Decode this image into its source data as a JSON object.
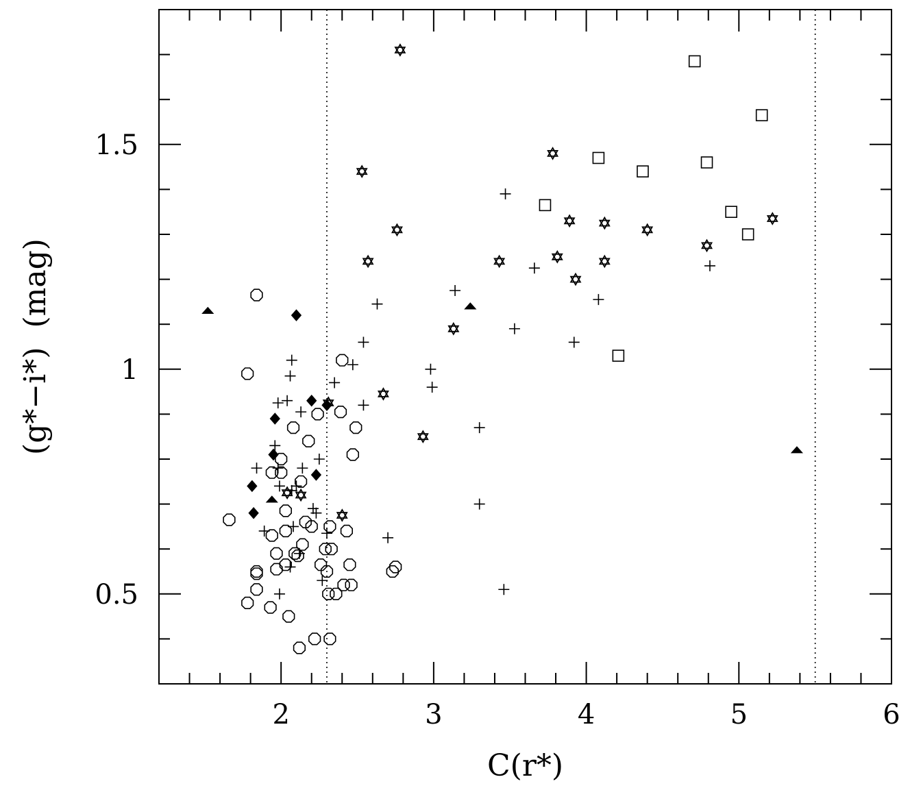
{
  "chart_data": {
    "type": "scatter",
    "title": "",
    "xlabel": "C(r*)",
    "ylabel": "(g*−i*)  (mag)",
    "xlim": [
      1.2,
      6.0
    ],
    "ylim": [
      0.3,
      1.8
    ],
    "xticks": [
      {
        "value": 2,
        "label": "2"
      },
      {
        "value": 3,
        "label": "3"
      },
      {
        "value": 4,
        "label": "4"
      },
      {
        "value": 5,
        "label": "5"
      },
      {
        "value": 6,
        "label": "6"
      }
    ],
    "yticks": [
      {
        "value": 0.5,
        "label": "0.5"
      },
      {
        "value": 1.0,
        "label": "1"
      },
      {
        "value": 1.5,
        "label": "1.5"
      }
    ],
    "vlines": [
      2.3,
      5.5
    ],
    "series": [
      {
        "name": "circles",
        "marker": "octagon",
        "points": [
          [
            1.84,
            1.165
          ],
          [
            1.78,
            0.99
          ],
          [
            1.66,
            0.665
          ],
          [
            1.78,
            0.48
          ],
          [
            1.84,
            0.55
          ],
          [
            1.84,
            0.51
          ],
          [
            1.84,
            0.545
          ],
          [
            1.94,
            0.77
          ],
          [
            1.94,
            0.63
          ],
          [
            1.93,
            0.47
          ],
          [
            1.97,
            0.59
          ],
          [
            1.97,
            0.555
          ],
          [
            2.0,
            0.8
          ],
          [
            2.0,
            0.77
          ],
          [
            2.03,
            0.64
          ],
          [
            2.03,
            0.685
          ],
          [
            2.03,
            0.565
          ],
          [
            2.05,
            0.45
          ],
          [
            2.08,
            0.87
          ],
          [
            2.09,
            0.59
          ],
          [
            2.11,
            0.585
          ],
          [
            2.13,
            0.75
          ],
          [
            2.14,
            0.61
          ],
          [
            2.16,
            0.66
          ],
          [
            2.18,
            0.84
          ],
          [
            2.2,
            0.65
          ],
          [
            2.22,
            0.4
          ],
          [
            2.24,
            0.9
          ],
          [
            2.26,
            0.565
          ],
          [
            2.29,
            0.6
          ],
          [
            2.3,
            0.55
          ],
          [
            2.31,
            0.5
          ],
          [
            2.32,
            0.65
          ],
          [
            2.32,
            0.4
          ],
          [
            2.33,
            0.6
          ],
          [
            2.36,
            0.5
          ],
          [
            2.39,
            0.905
          ],
          [
            2.4,
            1.02
          ],
          [
            2.41,
            0.52
          ],
          [
            2.43,
            0.64
          ],
          [
            2.45,
            0.565
          ],
          [
            2.46,
            0.52
          ],
          [
            2.47,
            0.81
          ],
          [
            2.49,
            0.87
          ],
          [
            2.73,
            0.55
          ],
          [
            2.75,
            0.56
          ],
          [
            2.12,
            0.38
          ]
        ]
      },
      {
        "name": "plus",
        "marker": "plus",
        "points": [
          [
            2.07,
            1.02
          ],
          [
            2.06,
            0.985
          ],
          [
            1.98,
            0.925
          ],
          [
            2.04,
            0.93
          ],
          [
            2.13,
            0.905
          ],
          [
            1.96,
            0.83
          ],
          [
            1.84,
            0.78
          ],
          [
            1.98,
            0.78
          ],
          [
            2.14,
            0.78
          ],
          [
            2.25,
            0.8
          ],
          [
            1.99,
            0.74
          ],
          [
            2.07,
            0.73
          ],
          [
            2.1,
            0.74
          ],
          [
            2.21,
            0.69
          ],
          [
            2.23,
            0.68
          ],
          [
            1.89,
            0.64
          ],
          [
            2.08,
            0.65
          ],
          [
            2.3,
            0.635
          ],
          [
            2.06,
            0.56
          ],
          [
            2.12,
            0.59
          ],
          [
            2.27,
            0.53
          ],
          [
            1.99,
            0.5
          ],
          [
            2.35,
            0.97
          ],
          [
            2.47,
            1.01
          ],
          [
            2.54,
            1.06
          ],
          [
            2.54,
            0.92
          ],
          [
            2.63,
            1.145
          ],
          [
            2.7,
            0.625
          ],
          [
            2.98,
            1.0
          ],
          [
            2.99,
            0.96
          ],
          [
            3.14,
            1.175
          ],
          [
            3.3,
            0.87
          ],
          [
            3.3,
            0.7
          ],
          [
            3.47,
            1.39
          ],
          [
            3.46,
            0.51
          ],
          [
            3.53,
            1.09
          ],
          [
            3.66,
            1.225
          ],
          [
            3.92,
            1.06
          ],
          [
            4.08,
            1.155
          ],
          [
            4.81,
            1.23
          ]
        ]
      },
      {
        "name": "stars",
        "marker": "star",
        "points": [
          [
            2.78,
            1.71
          ],
          [
            2.53,
            1.44
          ],
          [
            2.57,
            1.24
          ],
          [
            2.76,
            1.31
          ],
          [
            2.67,
            0.945
          ],
          [
            2.93,
            0.85
          ],
          [
            3.13,
            1.09
          ],
          [
            3.43,
            1.24
          ],
          [
            2.31,
            0.925
          ],
          [
            2.13,
            0.72
          ],
          [
            2.04,
            0.725
          ],
          [
            2.4,
            0.675
          ],
          [
            3.78,
            1.48
          ],
          [
            3.81,
            1.25
          ],
          [
            3.89,
            1.33
          ],
          [
            3.93,
            1.2
          ],
          [
            4.12,
            1.325
          ],
          [
            4.12,
            1.24
          ],
          [
            4.4,
            1.31
          ],
          [
            4.79,
            1.275
          ],
          [
            5.22,
            1.335
          ]
        ]
      },
      {
        "name": "squares",
        "marker": "square",
        "points": [
          [
            4.71,
            1.685
          ],
          [
            5.15,
            1.565
          ],
          [
            4.08,
            1.47
          ],
          [
            4.37,
            1.44
          ],
          [
            4.79,
            1.46
          ],
          [
            3.73,
            1.365
          ],
          [
            4.95,
            1.35
          ],
          [
            5.06,
            1.3
          ],
          [
            4.21,
            1.03
          ]
        ]
      },
      {
        "name": "diamonds",
        "marker": "filled-diamond",
        "points": [
          [
            2.1,
            1.12
          ],
          [
            2.2,
            0.93
          ],
          [
            2.3,
            0.92
          ],
          [
            1.96,
            0.89
          ],
          [
            1.95,
            0.81
          ],
          [
            1.81,
            0.74
          ],
          [
            1.82,
            0.68
          ],
          [
            2.23,
            0.765
          ]
        ]
      },
      {
        "name": "triangles",
        "marker": "filled-triangle",
        "points": [
          [
            1.52,
            1.13
          ],
          [
            3.24,
            1.14
          ],
          [
            5.38,
            0.82
          ],
          [
            1.94,
            0.71
          ]
        ]
      }
    ]
  }
}
